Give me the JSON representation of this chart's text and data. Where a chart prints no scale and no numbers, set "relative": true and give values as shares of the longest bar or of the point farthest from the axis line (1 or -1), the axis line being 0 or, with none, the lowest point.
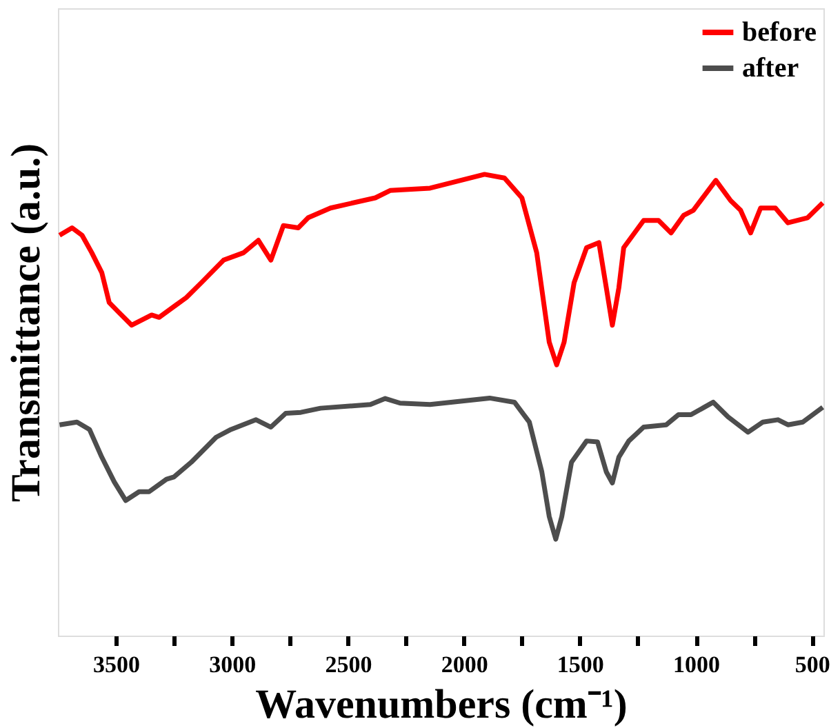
{
  "chart_data": {
    "type": "line",
    "xlabel": "Wavenumbers (cm⁻¹)",
    "ylabel": "Transmittance (a.u.)",
    "relative": true,
    "legend": "top right",
    "grid": false,
    "xlim": [
      3750,
      450
    ],
    "xticks": [
      3500,
      {
        "value": 3250,
        "label": null
      },
      3000,
      {
        "value": 2750,
        "label": null
      },
      2500,
      {
        "value": 2250,
        "label": null
      },
      2000,
      {
        "value": 1750,
        "label": null
      },
      1500,
      {
        "value": 1250,
        "label": null
      },
      1000,
      {
        "value": 750,
        "label": null
      },
      500
    ],
    "series": [
      {
        "name": "before",
        "color": "#ff0000",
        "x": [
          3743,
          3689,
          3646,
          3604,
          3561,
          3529,
          3486,
          3432,
          3346,
          3314,
          3196,
          3132,
          3036,
          2950,
          2886,
          2832,
          2778,
          2714,
          2671,
          2575,
          2382,
          2318,
          2146,
          1911,
          1825,
          1750,
          1686,
          1632,
          1600,
          1568,
          1525,
          1471,
          1418,
          1386,
          1360,
          1332,
          1311,
          1225,
          1161,
          1107,
          1053,
          1011,
          914,
          850,
          807,
          764,
          721,
          657,
          603,
          518,
          453
        ],
        "values": [
          0.868,
          0.884,
          0.868,
          0.83,
          0.787,
          0.722,
          0.7,
          0.673,
          0.695,
          0.69,
          0.733,
          0.765,
          0.814,
          0.83,
          0.857,
          0.814,
          0.889,
          0.884,
          0.906,
          0.927,
          0.949,
          0.965,
          0.97,
          1.0,
          0.992,
          0.949,
          0.83,
          0.636,
          0.587,
          0.636,
          0.765,
          0.841,
          0.852,
          0.754,
          0.673,
          0.754,
          0.841,
          0.9,
          0.9,
          0.873,
          0.911,
          0.922,
          0.987,
          0.943,
          0.922,
          0.873,
          0.927,
          0.927,
          0.895,
          0.906,
          0.938
        ]
      },
      {
        "name": "after",
        "color": "#4d4d4d",
        "x": [
          3743,
          3668,
          3614,
          3561,
          3507,
          3458,
          3400,
          3357,
          3282,
          3250,
          3175,
          3068,
          3004,
          2896,
          2832,
          2768,
          2703,
          2618,
          2403,
          2339,
          2275,
          2146,
          1889,
          1782,
          1718,
          1664,
          1632,
          1604,
          1578,
          1536,
          1471,
          1424,
          1386,
          1360,
          1332,
          1289,
          1225,
          1128,
          1075,
          1021,
          925,
          861,
          775,
          711,
          646,
          603,
          539,
          453
        ],
        "values": [
          0.457,
          0.463,
          0.447,
          0.387,
          0.333,
          0.293,
          0.312,
          0.312,
          0.339,
          0.344,
          0.376,
          0.43,
          0.447,
          0.468,
          0.452,
          0.482,
          0.484,
          0.493,
          0.501,
          0.514,
          0.504,
          0.501,
          0.515,
          0.506,
          0.463,
          0.355,
          0.258,
          0.209,
          0.258,
          0.376,
          0.422,
          0.42,
          0.355,
          0.331,
          0.387,
          0.422,
          0.452,
          0.457,
          0.479,
          0.479,
          0.506,
          0.474,
          0.441,
          0.463,
          0.468,
          0.457,
          0.463,
          0.495
        ]
      }
    ]
  }
}
